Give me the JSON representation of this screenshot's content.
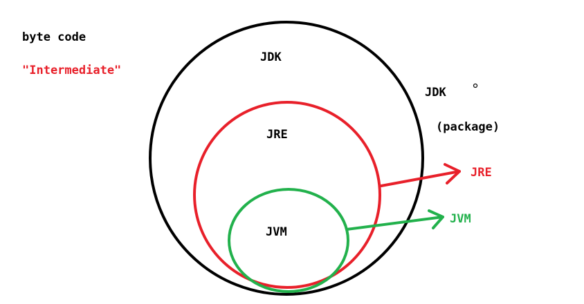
{
  "notes": {
    "line1": "byte code",
    "line2": "\"Intermediate\""
  },
  "circles": {
    "jdk": "JDK",
    "jre": "JRE",
    "jvm": "JVM"
  },
  "right_labels": {
    "jdk": "JDK",
    "package": "(package)",
    "jre": "JRE",
    "jvm": "JVM"
  },
  "colors": {
    "black": "#000000",
    "red": "#e8202a",
    "green": "#22b14c"
  }
}
